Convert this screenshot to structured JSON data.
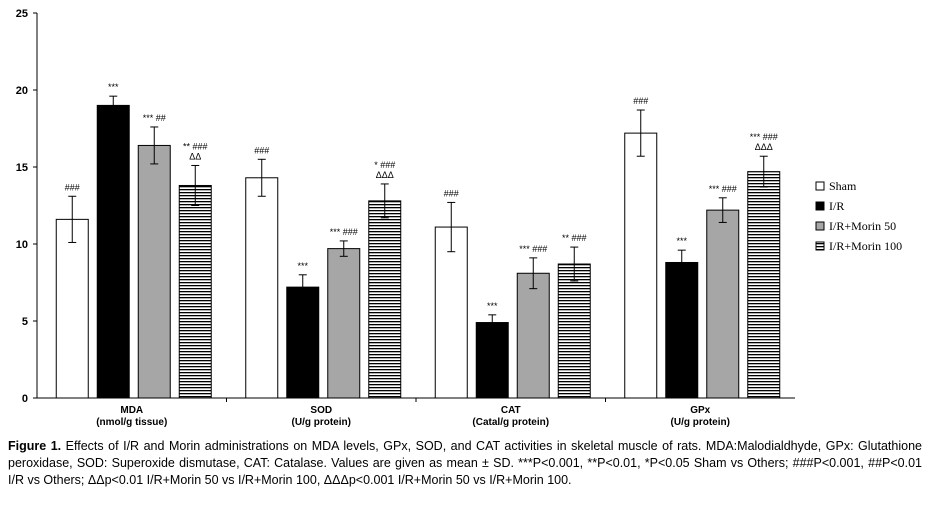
{
  "chart_data": {
    "type": "bar",
    "ylim": [
      0,
      25
    ],
    "yticks": [
      "0",
      "5",
      "10",
      "15",
      "20",
      "25"
    ],
    "grid": false,
    "legend_position": "right",
    "categories": [
      {
        "line1": "MDA",
        "line2": "(nmol/g tissue)"
      },
      {
        "line1": "SOD",
        "line2": "(U/g protein)"
      },
      {
        "line1": "CAT",
        "line2": "(Catal/g protein)"
      },
      {
        "line1": "GPx",
        "line2": "(U/g protein)"
      }
    ],
    "series": [
      {
        "name": "Sham",
        "pattern": "white",
        "values": [
          11.6,
          14.3,
          11.1,
          17.2
        ],
        "errors": [
          1.5,
          1.2,
          1.6,
          1.5
        ],
        "annotations": [
          [
            "###"
          ],
          [
            "###"
          ],
          [
            "###"
          ],
          [
            "###"
          ]
        ]
      },
      {
        "name": "I/R",
        "pattern": "black",
        "values": [
          19.0,
          7.2,
          4.9,
          8.8
        ],
        "errors": [
          0.6,
          0.8,
          0.5,
          0.8
        ],
        "annotations": [
          [
            "***"
          ],
          [
            "***"
          ],
          [
            "***"
          ],
          [
            "***"
          ]
        ]
      },
      {
        "name": "I/R+Morin 50",
        "pattern": "gray",
        "values": [
          16.4,
          9.7,
          8.1,
          12.2
        ],
        "errors": [
          1.2,
          0.5,
          1.0,
          0.8
        ],
        "annotations": [
          [
            "*** ##"
          ],
          [
            "*** ###"
          ],
          [
            "*** ###"
          ],
          [
            "*** ###"
          ]
        ]
      },
      {
        "name": "I/R+Morin 100",
        "pattern": "hstripe",
        "values": [
          13.8,
          12.8,
          8.7,
          14.7
        ],
        "errors": [
          1.3,
          1.1,
          1.1,
          1.0
        ],
        "annotations": [
          [
            "** ###",
            "ΔΔ"
          ],
          [
            "* ###",
            "ΔΔΔ"
          ],
          [
            "** ###"
          ],
          [
            "*** ###",
            "ΔΔΔ"
          ]
        ]
      }
    ]
  },
  "caption": {
    "label": "Figure 1.",
    "text": " Effects of I/R and Morin administrations on MDA levels, GPx, SOD, and CAT activities in skeletal muscle of rats. MDA:Malodialdhyde, GPx: Glutathione peroxidase, SOD: Superoxide dismutase, CAT: Catalase. Values are given as mean ± SD. ***P<0.001, **P<0.01, *P<0.05 Sham vs Others; ###P<0.001, ##P<0.01 I/R vs Others; ΔΔp<0.01 I/R+Morin 50 vs I/R+Morin 100, ΔΔΔp<0.001 I/R+Morin 50 vs I/R+Morin 100."
  },
  "colors": {
    "black_bar": "#000000",
    "gray_bar": "#a6a6a6",
    "white_bar": "#ffffff",
    "stripe": "#000000"
  }
}
